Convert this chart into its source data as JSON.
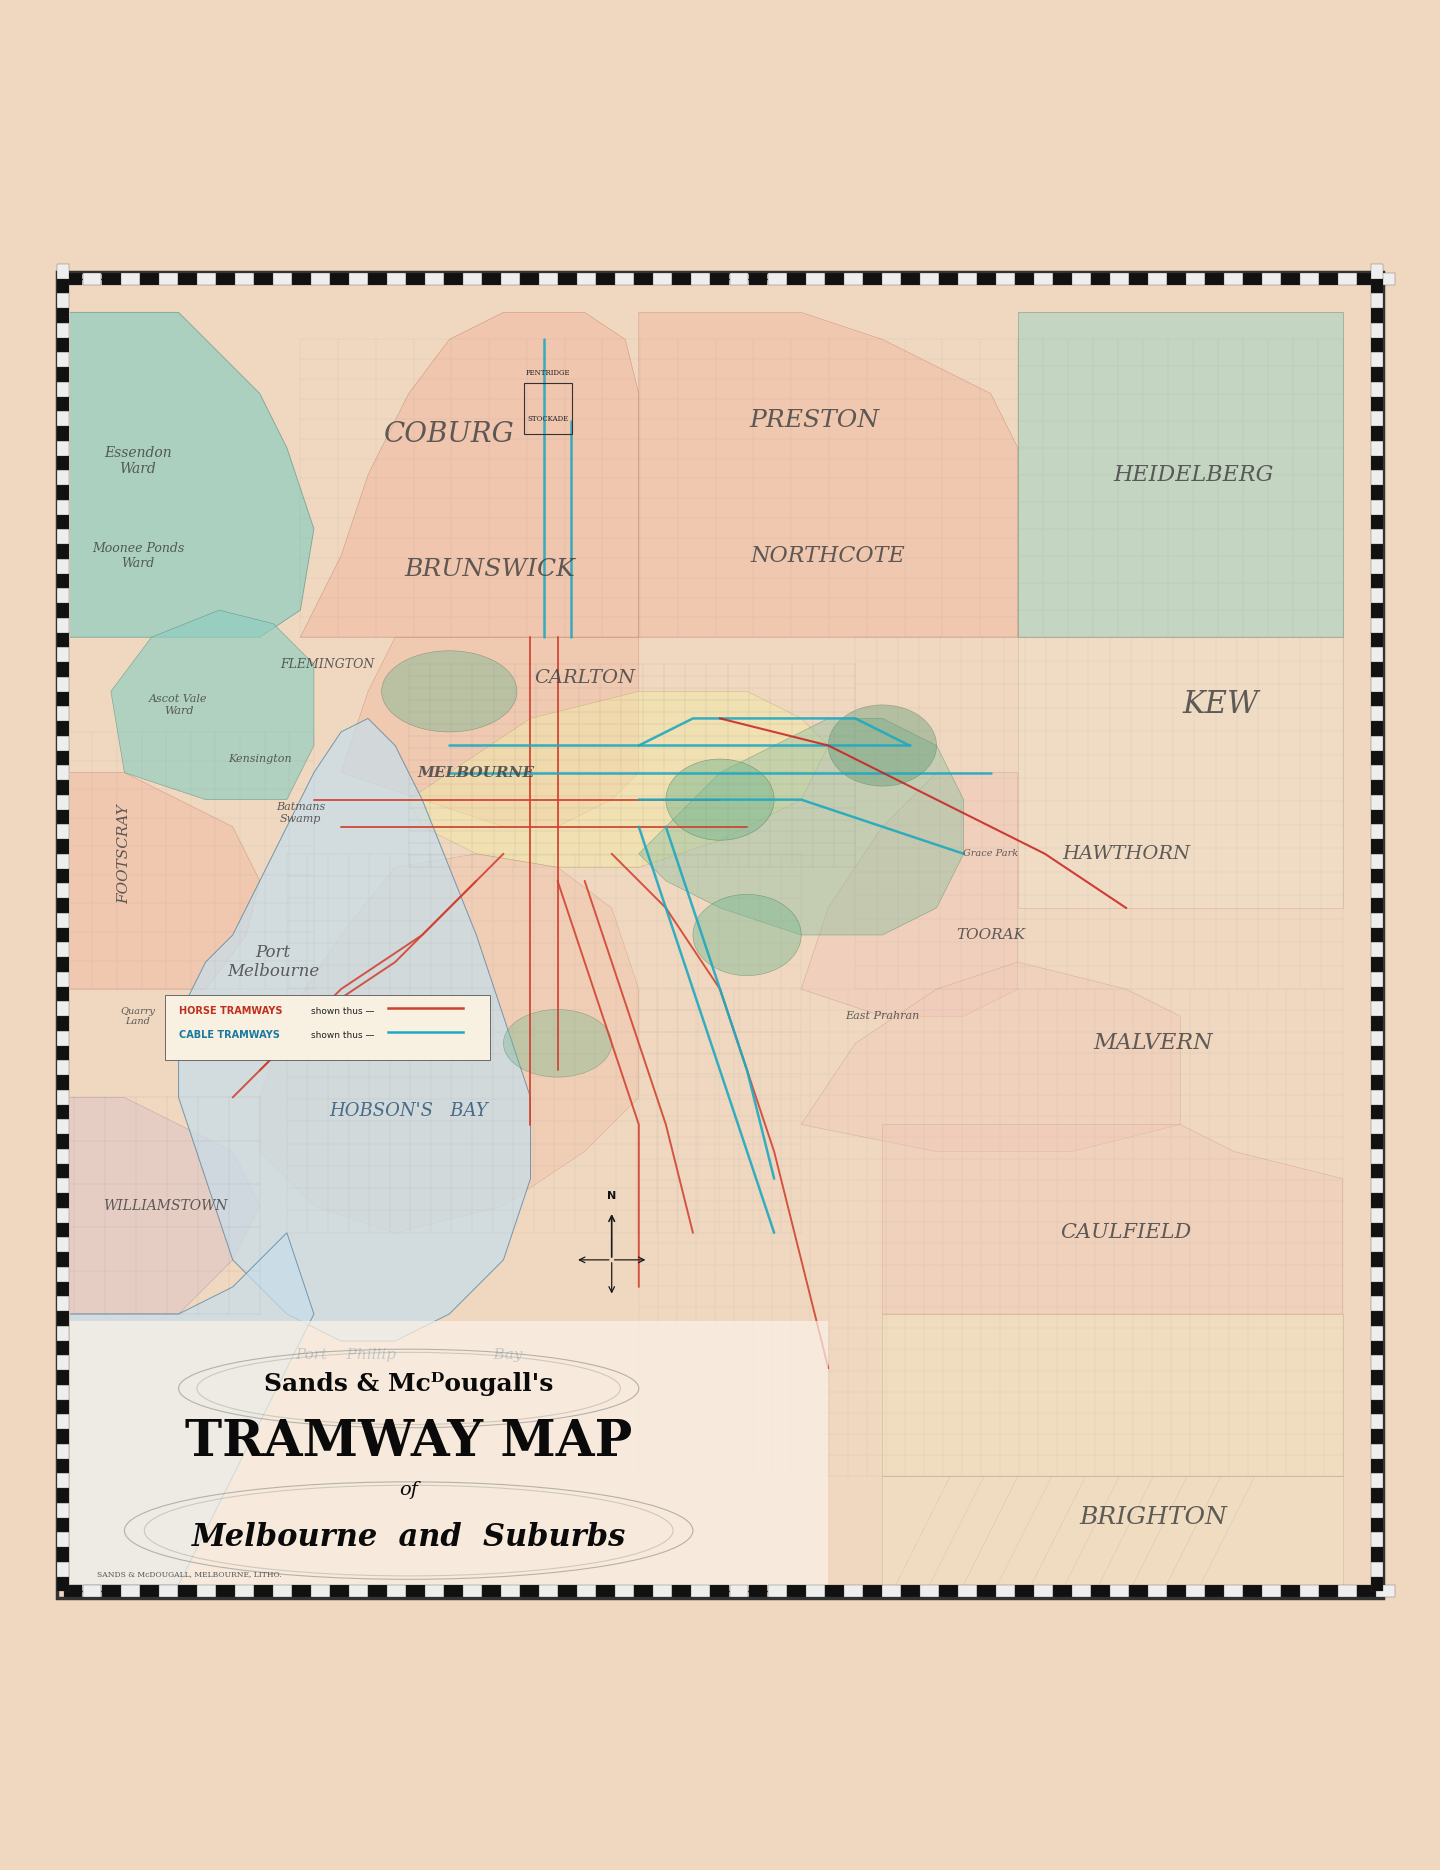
{
  "bg_color": "#f0d8c0",
  "map_bg": "#f5e8d5",
  "frame_outer": "#2a2a2a",
  "frame_inner": "#444444",
  "tick_color": "#333333",
  "water_color": "#c8dde8",
  "water_alpha": 0.75,
  "horse_color": "#d04030",
  "cable_color": "#20a8c0",
  "red_line_color": "#d03030",
  "zone_colors": {
    "essendon_teal": "#8ecec0",
    "coburg_pink": "#f0b8a0",
    "brunswick_pink": "#f0b8a0",
    "preston_pink": "#f0b8a0",
    "heidelberg_teal": "#a0d4c4",
    "carlton_yellow": "#f0e8a8",
    "kew_cream": "#f0e0c8",
    "footscray_pink": "#f0b8a0",
    "hawthorn_pink": "#f0c8b8",
    "malvern_pink": "#f0c8b8",
    "caulfield_cream": "#f0e4c0",
    "brighton_cream": "#f0e4c0",
    "south_melb_pink": "#f0c0a8",
    "port_melb_cream": "#f0dcc0",
    "williamstown_mauve": "#d8c0c8"
  },
  "title1": "Sands & Mcᴰougall's",
  "title2": "TRAMWAY MAP",
  "title3": "of",
  "title4": "Melbourne and Suburbs",
  "subtitle": "SANDS & McDOUGALL, MELBOURNE, LITHO.",
  "port_phillip": "Port    Phillip                           Bay",
  "hobsons_bay": "HOBSON'S    BAY"
}
